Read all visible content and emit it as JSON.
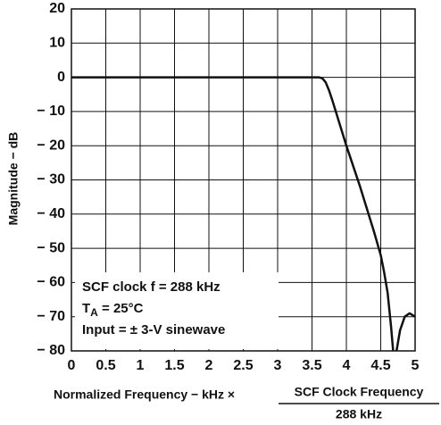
{
  "chart_data": {
    "type": "line",
    "ylabel": "Magnitude − dB",
    "xlabel": {
      "text": "Normalized Frequency − kHz ×",
      "numerator": "SCF Clock Frequency",
      "denominator": "288 kHz"
    },
    "annotations": [
      {
        "text": "SCF clock f = 288 kHz"
      },
      {
        "text": "T",
        "sub": "A",
        "rest": " = 25°C"
      },
      {
        "text": "Input = ± 3-V sinewave"
      }
    ],
    "x": [
      0,
      0.5,
      1,
      1.5,
      2,
      2.5,
      3,
      3.5,
      3.6,
      3.65,
      3.7,
      3.75,
      3.8,
      4.0,
      4.2,
      4.4,
      4.5,
      4.55,
      4.6,
      4.65,
      4.68,
      4.7,
      4.73,
      4.78,
      4.85,
      4.92,
      5.0
    ],
    "series": [
      {
        "name": "Magnitude",
        "color": "#111111",
        "values": [
          0,
          0,
          0,
          0,
          0,
          0,
          0,
          0,
          0,
          -0.3,
          -1.5,
          -4,
          -7,
          -20,
          -32,
          -45,
          -52,
          -57,
          -63,
          -73,
          -80,
          null,
          -80,
          -74,
          -70,
          -69,
          -70
        ]
      }
    ],
    "xlim": [
      0,
      5
    ],
    "ylim": [
      -80,
      20
    ],
    "xticks": [
      0,
      0.5,
      1,
      1.5,
      2,
      2.5,
      3,
      3.5,
      4,
      4.5,
      5
    ],
    "yticks": [
      {
        "value": 20,
        "label": "20"
      },
      {
        "value": 10,
        "label": "10"
      },
      {
        "value": 0,
        "label": "0"
      },
      {
        "value": -10,
        "label": "− 10"
      },
      {
        "value": -20,
        "label": "− 20"
      },
      {
        "value": -30,
        "label": "− 30"
      },
      {
        "value": -40,
        "label": "− 40"
      },
      {
        "value": -50,
        "label": "− 50"
      },
      {
        "value": -60,
        "label": "− 60"
      },
      {
        "value": -70,
        "label": "− 70"
      },
      {
        "value": -80,
        "label": "− 80"
      }
    ],
    "grid": true
  }
}
